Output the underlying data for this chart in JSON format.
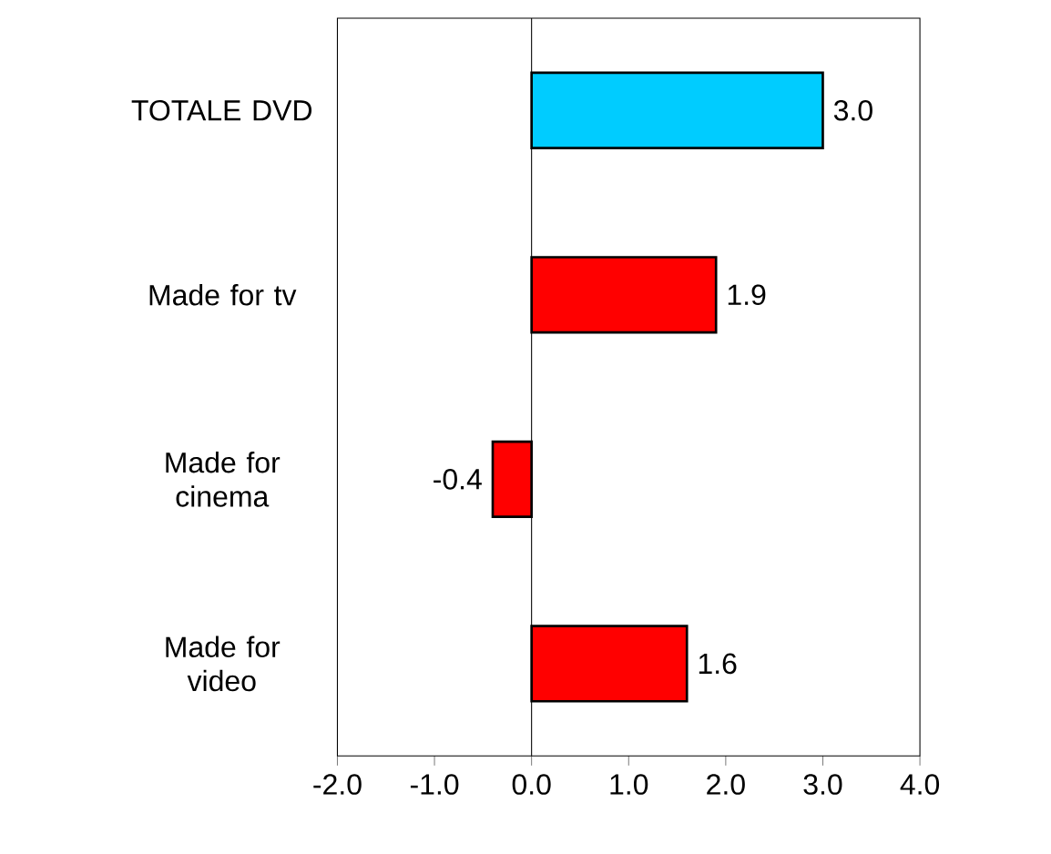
{
  "chart_data": {
    "type": "bar",
    "orientation": "horizontal",
    "categories": [
      "TOTALE DVD",
      "Made for tv",
      "Made for cinema",
      "Made for video"
    ],
    "values": [
      3.0,
      1.9,
      -0.4,
      1.6
    ],
    "colors": [
      "#00ccff",
      "#ff0000",
      "#ff0000",
      "#ff0000"
    ],
    "value_labels": [
      "3.0",
      "1.9",
      "-0.4",
      "1.6"
    ],
    "xlim": [
      -2,
      4
    ],
    "xticks": [
      {
        "value": -2,
        "label": "-2.0"
      },
      {
        "value": -1,
        "label": "-1.0"
      },
      {
        "value": 0,
        "label": "0.0"
      },
      {
        "value": 1,
        "label": "1.0"
      },
      {
        "value": 2,
        "label": "2.0"
      },
      {
        "value": 3,
        "label": "3.0"
      },
      {
        "value": 4,
        "label": "4.0"
      }
    ]
  }
}
